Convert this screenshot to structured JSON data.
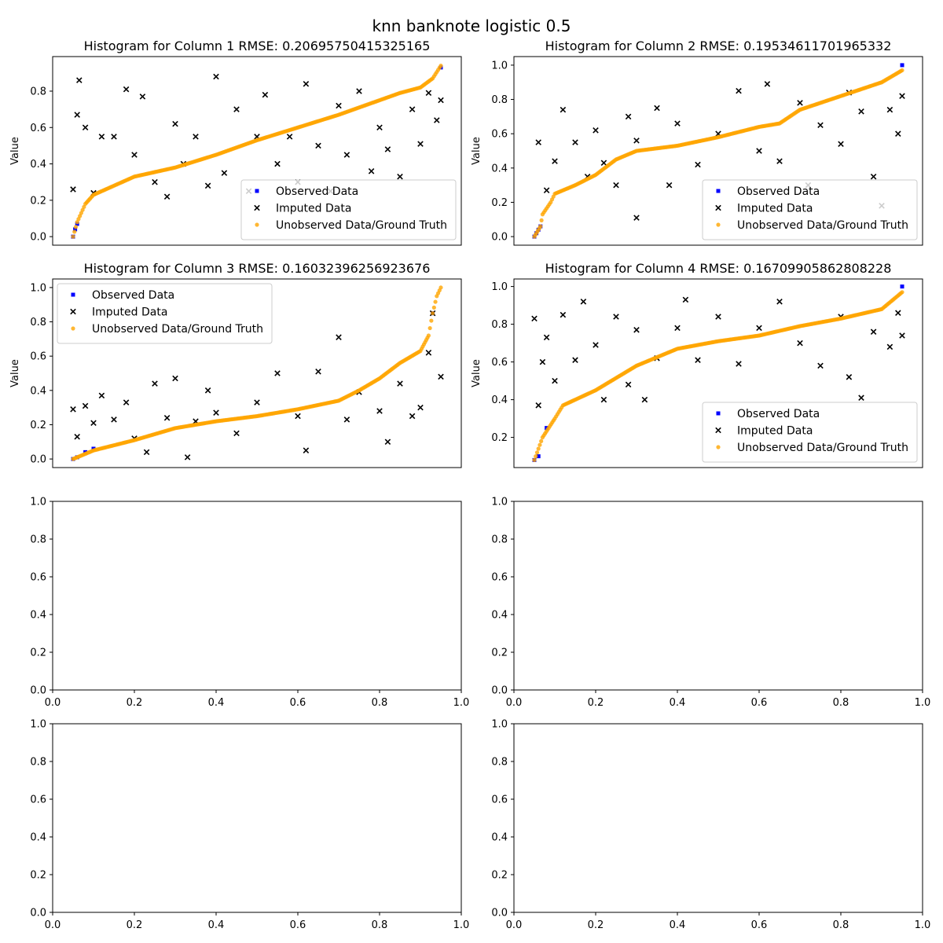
{
  "figure": {
    "title": "knn banknote logistic 0.5"
  },
  "chart_data": [
    {
      "type": "scatter",
      "title": "Histogram for Column 1 RMSE: 0.20695750415325165",
      "xlabel": "",
      "ylabel": "Value",
      "xlim": [
        0.0,
        1.0
      ],
      "ylim": [
        -0.047,
        0.99
      ],
      "xticks_visible": false,
      "yticks": [
        0.0,
        0.2,
        0.4,
        0.6,
        0.8
      ],
      "legend": "lower-right",
      "series": [
        {
          "name": "Observed Data",
          "color": "#0000ff",
          "marker": "square",
          "points": [
            [
              0.05,
              0.0
            ],
            [
              0.055,
              0.04
            ],
            [
              0.06,
              0.07
            ],
            [
              0.95,
              0.93
            ]
          ]
        },
        {
          "name": "Imputed Data",
          "color": "#000000",
          "marker": "x",
          "points": [
            [
              0.05,
              0.26
            ],
            [
              0.06,
              0.67
            ],
            [
              0.065,
              0.86
            ],
            [
              0.08,
              0.6
            ],
            [
              0.1,
              0.24
            ],
            [
              0.12,
              0.55
            ],
            [
              0.15,
              0.55
            ],
            [
              0.18,
              0.81
            ],
            [
              0.2,
              0.45
            ],
            [
              0.22,
              0.77
            ],
            [
              0.25,
              0.3
            ],
            [
              0.28,
              0.22
            ],
            [
              0.3,
              0.62
            ],
            [
              0.32,
              0.4
            ],
            [
              0.35,
              0.55
            ],
            [
              0.38,
              0.28
            ],
            [
              0.4,
              0.88
            ],
            [
              0.42,
              0.35
            ],
            [
              0.45,
              0.7
            ],
            [
              0.48,
              0.25
            ],
            [
              0.5,
              0.55
            ],
            [
              0.52,
              0.78
            ],
            [
              0.55,
              0.4
            ],
            [
              0.58,
              0.55
            ],
            [
              0.6,
              0.3
            ],
            [
              0.62,
              0.84
            ],
            [
              0.65,
              0.5
            ],
            [
              0.68,
              0.25
            ],
            [
              0.7,
              0.72
            ],
            [
              0.72,
              0.45
            ],
            [
              0.75,
              0.8
            ],
            [
              0.78,
              0.36
            ],
            [
              0.8,
              0.6
            ],
            [
              0.82,
              0.48
            ],
            [
              0.85,
              0.33
            ],
            [
              0.88,
              0.7
            ],
            [
              0.9,
              0.51
            ],
            [
              0.92,
              0.79
            ],
            [
              0.94,
              0.64
            ],
            [
              0.95,
              0.75
            ]
          ]
        },
        {
          "name": "Unobserved Data/Ground Truth",
          "color": "#ffa500",
          "marker": "circle",
          "points": [
            [
              0.05,
              0.0
            ],
            [
              0.06,
              0.08
            ],
            [
              0.08,
              0.18
            ],
            [
              0.1,
              0.23
            ],
            [
              0.15,
              0.28
            ],
            [
              0.2,
              0.33
            ],
            [
              0.3,
              0.38
            ],
            [
              0.4,
              0.45
            ],
            [
              0.5,
              0.53
            ],
            [
              0.6,
              0.6
            ],
            [
              0.7,
              0.67
            ],
            [
              0.8,
              0.75
            ],
            [
              0.85,
              0.79
            ],
            [
              0.9,
              0.82
            ],
            [
              0.93,
              0.87
            ],
            [
              0.95,
              0.94
            ]
          ]
        }
      ]
    },
    {
      "type": "scatter",
      "title": "Histogram for Column 2 RMSE: 0.19534611701965332",
      "xlabel": "",
      "ylabel": "Value",
      "xlim": [
        0.0,
        1.0
      ],
      "ylim": [
        -0.05,
        1.05
      ],
      "xticks_visible": false,
      "yticks": [
        0.0,
        0.2,
        0.4,
        0.6,
        0.8,
        1.0
      ],
      "legend": "lower-right",
      "series": [
        {
          "name": "Observed Data",
          "color": "#0000ff",
          "marker": "square",
          "points": [
            [
              0.05,
              0.0
            ],
            [
              0.055,
              0.02
            ],
            [
              0.06,
              0.04
            ],
            [
              0.065,
              0.06
            ],
            [
              0.95,
              1.0
            ]
          ]
        },
        {
          "name": "Imputed Data",
          "color": "#000000",
          "marker": "x",
          "points": [
            [
              0.06,
              0.55
            ],
            [
              0.08,
              0.27
            ],
            [
              0.1,
              0.44
            ],
            [
              0.12,
              0.74
            ],
            [
              0.15,
              0.55
            ],
            [
              0.18,
              0.35
            ],
            [
              0.2,
              0.62
            ],
            [
              0.22,
              0.43
            ],
            [
              0.25,
              0.3
            ],
            [
              0.28,
              0.7
            ],
            [
              0.3,
              0.56
            ],
            [
              0.3,
              0.11
            ],
            [
              0.35,
              0.75
            ],
            [
              0.38,
              0.3
            ],
            [
              0.4,
              0.66
            ],
            [
              0.45,
              0.42
            ],
            [
              0.5,
              0.6
            ],
            [
              0.55,
              0.85
            ],
            [
              0.6,
              0.5
            ],
            [
              0.62,
              0.89
            ],
            [
              0.65,
              0.44
            ],
            [
              0.7,
              0.78
            ],
            [
              0.72,
              0.3
            ],
            [
              0.75,
              0.65
            ],
            [
              0.8,
              0.54
            ],
            [
              0.82,
              0.84
            ],
            [
              0.85,
              0.73
            ],
            [
              0.88,
              0.35
            ],
            [
              0.9,
              0.18
            ],
            [
              0.92,
              0.74
            ],
            [
              0.94,
              0.6
            ],
            [
              0.95,
              0.82
            ]
          ]
        },
        {
          "name": "Unobserved Data/Ground Truth",
          "color": "#ffa500",
          "marker": "circle",
          "points": [
            [
              0.05,
              0.0
            ],
            [
              0.065,
              0.06
            ],
            [
              0.07,
              0.13
            ],
            [
              0.09,
              0.2
            ],
            [
              0.1,
              0.25
            ],
            [
              0.15,
              0.3
            ],
            [
              0.2,
              0.36
            ],
            [
              0.25,
              0.45
            ],
            [
              0.3,
              0.5
            ],
            [
              0.4,
              0.53
            ],
            [
              0.5,
              0.58
            ],
            [
              0.6,
              0.64
            ],
            [
              0.65,
              0.66
            ],
            [
              0.7,
              0.74
            ],
            [
              0.8,
              0.82
            ],
            [
              0.9,
              0.9
            ],
            [
              0.95,
              0.97
            ]
          ]
        }
      ]
    },
    {
      "type": "scatter",
      "title": "Histogram for Column 3 RMSE: 0.16032396256923676",
      "xlabel": "",
      "ylabel": "Value",
      "xlim": [
        0.0,
        1.0
      ],
      "ylim": [
        -0.05,
        1.05
      ],
      "xticks_visible": false,
      "yticks": [
        0.0,
        0.2,
        0.4,
        0.6,
        0.8,
        1.0
      ],
      "legend": "upper-left",
      "series": [
        {
          "name": "Observed Data",
          "color": "#0000ff",
          "marker": "square",
          "points": [
            [
              0.05,
              0.0
            ],
            [
              0.06,
              0.01
            ],
            [
              0.08,
              0.04
            ],
            [
              0.1,
              0.06
            ],
            [
              0.93,
              0.85
            ]
          ]
        },
        {
          "name": "Imputed Data",
          "color": "#000000",
          "marker": "x",
          "points": [
            [
              0.05,
              0.29
            ],
            [
              0.06,
              0.13
            ],
            [
              0.08,
              0.31
            ],
            [
              0.1,
              0.21
            ],
            [
              0.12,
              0.37
            ],
            [
              0.15,
              0.23
            ],
            [
              0.18,
              0.33
            ],
            [
              0.2,
              0.12
            ],
            [
              0.23,
              0.04
            ],
            [
              0.25,
              0.44
            ],
            [
              0.28,
              0.24
            ],
            [
              0.3,
              0.47
            ],
            [
              0.33,
              0.01
            ],
            [
              0.35,
              0.22
            ],
            [
              0.38,
              0.4
            ],
            [
              0.4,
              0.27
            ],
            [
              0.45,
              0.15
            ],
            [
              0.5,
              0.33
            ],
            [
              0.55,
              0.5
            ],
            [
              0.6,
              0.25
            ],
            [
              0.62,
              0.05
            ],
            [
              0.65,
              0.51
            ],
            [
              0.7,
              0.71
            ],
            [
              0.72,
              0.23
            ],
            [
              0.75,
              0.39
            ],
            [
              0.8,
              0.28
            ],
            [
              0.82,
              0.1
            ],
            [
              0.85,
              0.44
            ],
            [
              0.88,
              0.25
            ],
            [
              0.9,
              0.3
            ],
            [
              0.92,
              0.62
            ],
            [
              0.93,
              0.85
            ],
            [
              0.95,
              0.48
            ]
          ]
        },
        {
          "name": "Unobserved Data/Ground Truth",
          "color": "#ffa500",
          "marker": "circle",
          "points": [
            [
              0.05,
              0.0
            ],
            [
              0.1,
              0.05
            ],
            [
              0.2,
              0.11
            ],
            [
              0.3,
              0.18
            ],
            [
              0.4,
              0.22
            ],
            [
              0.5,
              0.25
            ],
            [
              0.6,
              0.29
            ],
            [
              0.7,
              0.34
            ],
            [
              0.75,
              0.4
            ],
            [
              0.8,
              0.47
            ],
            [
              0.85,
              0.56
            ],
            [
              0.9,
              0.63
            ],
            [
              0.92,
              0.72
            ],
            [
              0.93,
              0.85
            ],
            [
              0.94,
              0.95
            ],
            [
              0.95,
              1.0
            ]
          ]
        }
      ]
    },
    {
      "type": "scatter",
      "title": "Histogram for Column 4 RMSE: 0.16709905862808228",
      "xlabel": "",
      "ylabel": "Value",
      "xlim": [
        0.0,
        1.0
      ],
      "ylim": [
        0.04,
        1.04
      ],
      "xticks_visible": false,
      "yticks": [
        0.2,
        0.4,
        0.6,
        0.8,
        1.0
      ],
      "legend": "lower-right",
      "series": [
        {
          "name": "Observed Data",
          "color": "#0000ff",
          "marker": "square",
          "points": [
            [
              0.05,
              0.08
            ],
            [
              0.06,
              0.1
            ],
            [
              0.08,
              0.25
            ],
            [
              0.95,
              1.0
            ]
          ]
        },
        {
          "name": "Imputed Data",
          "color": "#000000",
          "marker": "x",
          "points": [
            [
              0.05,
              0.83
            ],
            [
              0.06,
              0.37
            ],
            [
              0.07,
              0.6
            ],
            [
              0.08,
              0.73
            ],
            [
              0.1,
              0.5
            ],
            [
              0.12,
              0.85
            ],
            [
              0.15,
              0.61
            ],
            [
              0.17,
              0.92
            ],
            [
              0.2,
              0.69
            ],
            [
              0.22,
              0.4
            ],
            [
              0.25,
              0.84
            ],
            [
              0.28,
              0.48
            ],
            [
              0.3,
              0.77
            ],
            [
              0.32,
              0.4
            ],
            [
              0.35,
              0.62
            ],
            [
              0.4,
              0.78
            ],
            [
              0.42,
              0.93
            ],
            [
              0.45,
              0.61
            ],
            [
              0.5,
              0.84
            ],
            [
              0.55,
              0.59
            ],
            [
              0.6,
              0.78
            ],
            [
              0.65,
              0.92
            ],
            [
              0.7,
              0.7
            ],
            [
              0.75,
              0.58
            ],
            [
              0.8,
              0.84
            ],
            [
              0.82,
              0.52
            ],
            [
              0.85,
              0.41
            ],
            [
              0.88,
              0.76
            ],
            [
              0.92,
              0.68
            ],
            [
              0.94,
              0.86
            ],
            [
              0.95,
              0.74
            ]
          ]
        },
        {
          "name": "Unobserved Data/Ground Truth",
          "color": "#ffa500",
          "marker": "circle",
          "points": [
            [
              0.05,
              0.08
            ],
            [
              0.07,
              0.2
            ],
            [
              0.1,
              0.3
            ],
            [
              0.12,
              0.37
            ],
            [
              0.2,
              0.45
            ],
            [
              0.3,
              0.58
            ],
            [
              0.4,
              0.67
            ],
            [
              0.5,
              0.71
            ],
            [
              0.6,
              0.74
            ],
            [
              0.7,
              0.79
            ],
            [
              0.8,
              0.83
            ],
            [
              0.9,
              0.88
            ],
            [
              0.95,
              0.97
            ]
          ]
        }
      ]
    },
    {
      "type": "scatter",
      "title": "",
      "xlabel": "",
      "ylabel": "",
      "xlim": [
        0.0,
        1.0
      ],
      "ylim": [
        0.0,
        1.0
      ],
      "xticks": [
        0.0,
        0.2,
        0.4,
        0.6,
        0.8,
        1.0
      ],
      "yticks": [
        0.0,
        0.2,
        0.4,
        0.6,
        0.8,
        1.0
      ],
      "series": []
    },
    {
      "type": "scatter",
      "title": "",
      "xlabel": "",
      "ylabel": "",
      "xlim": [
        0.0,
        1.0
      ],
      "ylim": [
        0.0,
        1.0
      ],
      "xticks": [
        0.0,
        0.2,
        0.4,
        0.6,
        0.8,
        1.0
      ],
      "yticks": [
        0.0,
        0.2,
        0.4,
        0.6,
        0.8,
        1.0
      ],
      "series": []
    },
    {
      "type": "scatter",
      "title": "",
      "xlabel": "",
      "ylabel": "",
      "xlim": [
        0.0,
        1.0
      ],
      "ylim": [
        0.0,
        1.0
      ],
      "xticks": [
        0.0,
        0.2,
        0.4,
        0.6,
        0.8,
        1.0
      ],
      "yticks": [
        0.0,
        0.2,
        0.4,
        0.6,
        0.8,
        1.0
      ],
      "series": []
    },
    {
      "type": "scatter",
      "title": "",
      "xlabel": "",
      "ylabel": "",
      "xlim": [
        0.0,
        1.0
      ],
      "ylim": [
        0.0,
        1.0
      ],
      "xticks": [
        0.0,
        0.2,
        0.4,
        0.6,
        0.8,
        1.0
      ],
      "yticks": [
        0.0,
        0.2,
        0.4,
        0.6,
        0.8,
        1.0
      ],
      "series": []
    }
  ]
}
